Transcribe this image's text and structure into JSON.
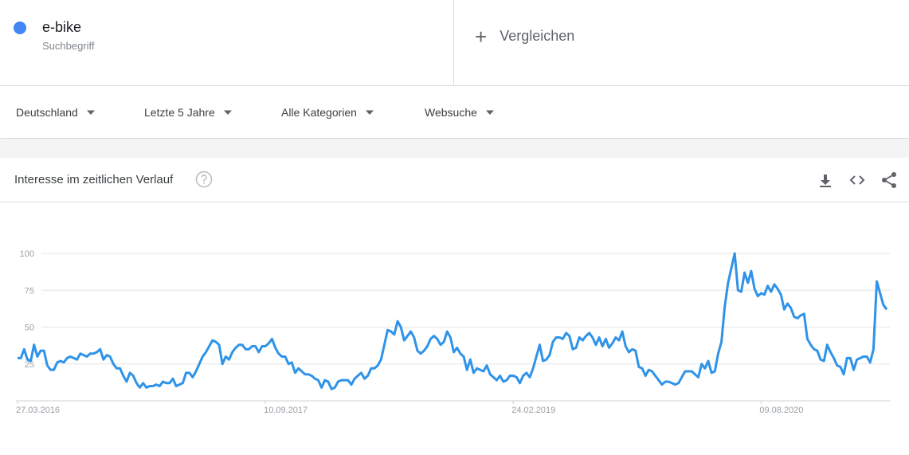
{
  "header": {
    "term": "e-bike",
    "term_type": "Suchbegriff",
    "compare": "Vergleichen"
  },
  "filters": [
    "Deutschland",
    "Letzte 5 Jahre",
    "Alle Kategorien",
    "Websuche"
  ],
  "section_title": "Interesse im zeitlichen Verlauf",
  "chart_data": {
    "type": "line",
    "series": [
      {
        "name": "e-bike",
        "color": "#2f93e8",
        "values": [
          29,
          29,
          35,
          28,
          27,
          38,
          30,
          34,
          34,
          24,
          21,
          21,
          26,
          27,
          26,
          29,
          30,
          29,
          28,
          32,
          31,
          30,
          32,
          32,
          33,
          35,
          28,
          31,
          30,
          25,
          22,
          22,
          17,
          13,
          19,
          17,
          12,
          9,
          12,
          9,
          10,
          10,
          11,
          10,
          13,
          12,
          12,
          15,
          10,
          11,
          12,
          19,
          19,
          16,
          20,
          25,
          30,
          33,
          37,
          41,
          40,
          38,
          25,
          30,
          28,
          33,
          36,
          38,
          38,
          35,
          35,
          37,
          37,
          33,
          37,
          37,
          39,
          42,
          36,
          32,
          30,
          30,
          25,
          26,
          19,
          22,
          20,
          18,
          18,
          17,
          15,
          14,
          9,
          14,
          13,
          8,
          9,
          13,
          14,
          14,
          14,
          11,
          15,
          17,
          19,
          15,
          17,
          22,
          22,
          24,
          28,
          38,
          48,
          47,
          45,
          54,
          50,
          41,
          44,
          47,
          43,
          34,
          32,
          34,
          37,
          42,
          44,
          42,
          38,
          40,
          47,
          43,
          33,
          36,
          32,
          30,
          21,
          28,
          19,
          22,
          21,
          20,
          24,
          18,
          16,
          14,
          17,
          13,
          14,
          17,
          17,
          16,
          12,
          17,
          19,
          16,
          22,
          30,
          38,
          27,
          28,
          31,
          40,
          43,
          43,
          42,
          46,
          44,
          35,
          36,
          43,
          41,
          44,
          46,
          43,
          38,
          43,
          37,
          42,
          36,
          39,
          43,
          41,
          47,
          37,
          33,
          35,
          34,
          23,
          22,
          17,
          21,
          20,
          17,
          14,
          11,
          13,
          13,
          12,
          11,
          12,
          16,
          20,
          20,
          20,
          18,
          16,
          25,
          22,
          27,
          19,
          20,
          32,
          40,
          64,
          80,
          90,
          100,
          75,
          74,
          87,
          80,
          88,
          76,
          71,
          73,
          72,
          78,
          74,
          79,
          76,
          72,
          62,
          66,
          63,
          57,
          56,
          58,
          59,
          42,
          38,
          35,
          34,
          28,
          27,
          38,
          33,
          29,
          24,
          23,
          18,
          29,
          29,
          21,
          28,
          29,
          30,
          30,
          26,
          35,
          81,
          73,
          65,
          62
        ]
      }
    ],
    "xlim": [
      0,
      263
    ],
    "xticks": [
      {
        "value": 0,
        "label": "27.03.2016"
      },
      {
        "value": 75,
        "label": "10.09.2017"
      },
      {
        "value": 150,
        "label": "24.02.2019"
      },
      {
        "value": 225,
        "label": "09.08.2020"
      }
    ],
    "ylim": [
      0,
      100
    ],
    "yticks": [
      25,
      50,
      75,
      100
    ],
    "grid": true
  }
}
